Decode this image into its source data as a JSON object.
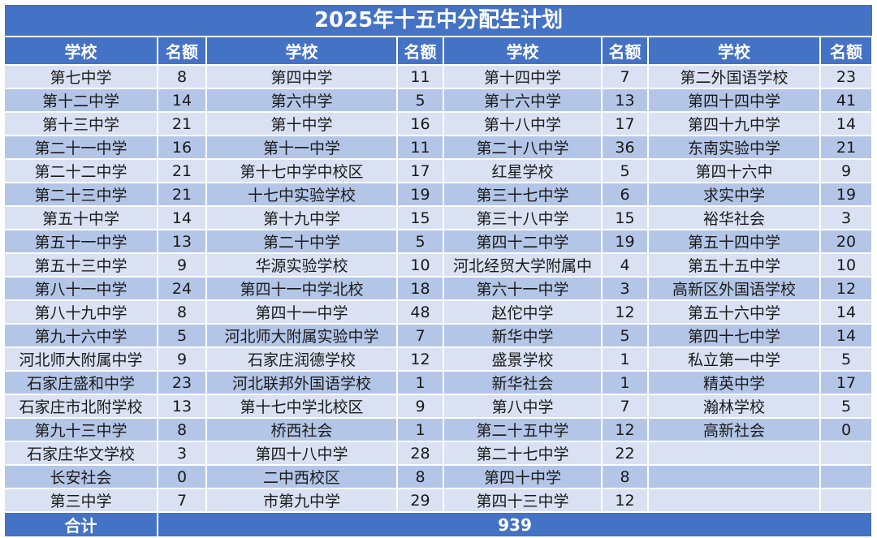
{
  "title": "2025年十五中分配生计划",
  "headers": [
    "学校",
    "名额",
    "学校",
    "名额",
    "学校",
    "名额",
    "学校",
    "名额"
  ],
  "rows": [
    [
      "第七中学",
      "8",
      "第四中学",
      "11",
      "第十四中学",
      "7",
      "第二外国语学校",
      "23"
    ],
    [
      "第十二中学",
      "14",
      "第六中学",
      "5",
      "第十六中学",
      "13",
      "第四十四中学",
      "41"
    ],
    [
      "第十三中学",
      "21",
      "第十中学",
      "16",
      "第十八中学",
      "17",
      "第四十九中学",
      "14"
    ],
    [
      "第二十一中学",
      "16",
      "第十一中学",
      "11",
      "第二十八中学",
      "36",
      "东南实验中学",
      "21"
    ],
    [
      "第二十二中学",
      "21",
      "第十七中学中校区",
      "17",
      "红星学校",
      "5",
      "第四十六中",
      "9"
    ],
    [
      "第二十三中学",
      "21",
      "十七中实验学校",
      "19",
      "第三十七中学",
      "6",
      "求实中学",
      "19"
    ],
    [
      "第五十中学",
      "14",
      "第十九中学",
      "15",
      "第三十八中学",
      "15",
      "裕华社会",
      "3"
    ],
    [
      "第五十一中学",
      "13",
      "第二十中学",
      "5",
      "第四十二中学",
      "19",
      "第五十四中学",
      "20"
    ],
    [
      "第五十三中学",
      "9",
      "华源实验学校",
      "10",
      "河北经贸大学附属中",
      "4",
      "第五十五中学",
      "10"
    ],
    [
      "第八十一中学",
      "24",
      "第四十一中学北校",
      "18",
      "第六十一中学",
      "3",
      "高新区外国语学校",
      "12"
    ],
    [
      "第八十九中学",
      "8",
      "第四十一中学",
      "48",
      "赵佗中学",
      "12",
      "第五十六中学",
      "14"
    ],
    [
      "第九十六中学",
      "5",
      "河北师大附属实验中学",
      "7",
      "新华中学",
      "5",
      "第四十七中学",
      "14"
    ],
    [
      "河北师大附属中学",
      "9",
      "石家庄润德学校",
      "12",
      "盛景学校",
      "1",
      "私立第一中学",
      "5"
    ],
    [
      "石家庄盛和中学",
      "23",
      "河北联邦外国语学校",
      "1",
      "新华社会",
      "1",
      "精英中学",
      "17"
    ],
    [
      "石家庄市北附学校",
      "13",
      "第十七中学北校区",
      "9",
      "第八中学",
      "7",
      "瀚林学校",
      "5"
    ],
    [
      "第九十三中学",
      "8",
      "桥西社会",
      "1",
      "第二十五中学",
      "12",
      "高新社会",
      "0"
    ],
    [
      "石家庄华文学校",
      "3",
      "第四十八中学",
      "28",
      "第二十七中学",
      "22",
      "",
      ""
    ],
    [
      "长安社会",
      "0",
      "二中西校区",
      "8",
      "第四十中学",
      "8",
      "",
      ""
    ],
    [
      "第三中学",
      "7",
      "市第九中学",
      "29",
      "第四十三中学",
      "12",
      "",
      ""
    ]
  ],
  "total": {
    "label": "合计",
    "value": "939"
  },
  "colors": {
    "header": "#4472c4",
    "row_light": "#d9e1f2",
    "row_dark": "#b4c6e7"
  }
}
